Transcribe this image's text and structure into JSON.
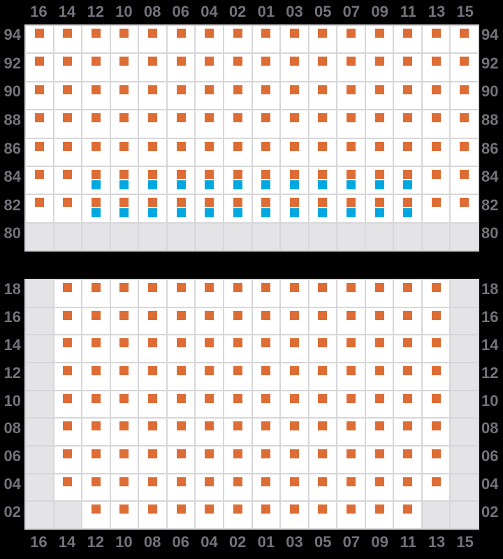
{
  "palette": {
    "bg": "#000000",
    "cell": "#ffffff",
    "blocked": "#e4e4e7",
    "gridline": "#d7d7da",
    "label": "#73737b",
    "orange": "#de6c35",
    "blue": "#00a8e1"
  },
  "column_labels_top": [
    "16",
    "14",
    "12",
    "10",
    "08",
    "06",
    "04",
    "02",
    "01",
    "03",
    "05",
    "07",
    "09",
    "11",
    "13",
    "15"
  ],
  "column_labels_bottom": [
    "16",
    "14",
    "12",
    "10",
    "08",
    "06",
    "04",
    "02",
    "01",
    "03",
    "05",
    "07",
    "09",
    "11",
    "13",
    "15"
  ],
  "cell_legend": {
    "O": "white cell with orange square marker",
    "B": "white cell with orange square over blue square marker",
    "G": "gray blocked empty cell"
  },
  "upper_grid": {
    "row_labels_left": [
      "94",
      "92",
      "90",
      "88",
      "86",
      "84",
      "82",
      "80"
    ],
    "row_labels_right": [
      "94",
      "92",
      "90",
      "88",
      "86",
      "84",
      "82",
      "80"
    ],
    "rows": [
      "OOOOOOOOOOOOOOOO",
      "OOOOOOOOOOOOOOOO",
      "OOOOOOOOOOOOOOOO",
      "OOOOOOOOOOOOOOOO",
      "OOOOOOOOOOOOOOOO",
      "OOBBBBBBBBBBBBOO",
      "OOBBBBBBBBBBBBOO",
      "GGGGGGGGGGGGGGGG"
    ]
  },
  "lower_grid": {
    "row_labels_left": [
      "18",
      "16",
      "14",
      "12",
      "10",
      "08",
      "06",
      "04",
      "02"
    ],
    "row_labels_right": [
      "18",
      "16",
      "14",
      "12",
      "10",
      "08",
      "06",
      "04",
      "02"
    ],
    "rows": [
      "GOOOOOOOOOOOOOOG",
      "GOOOOOOOOOOOOOOG",
      "GOOOOOOOOOOOOOOG",
      "GOOOOOOOOOOOOOOG",
      "GOOOOOOOOOOOOOOG",
      "GOOOOOOOOOOOOOOG",
      "GOOOOOOOOOOOOOOG",
      "GOOOOOOOOOOOOOOG",
      "GGOOOOOOOOOOOOGG"
    ]
  }
}
